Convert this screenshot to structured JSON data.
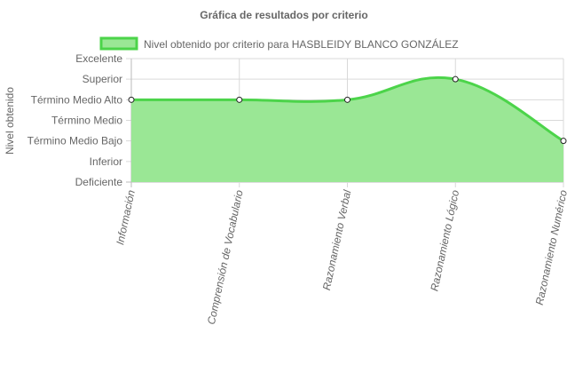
{
  "chart_data": {
    "type": "area",
    "title": "Gráfica de resultados por criterio",
    "ylabel": "Nivel obtenido",
    "xlabel": "",
    "y_levels": [
      "Deficiente",
      "Inferior",
      "Término Medio Bajo",
      "Término Medio",
      "Término Medio Alto",
      "Superior",
      "Excelente"
    ],
    "ylim": [
      0,
      6
    ],
    "categories": [
      "Información",
      "Comprensión de Vocabulario",
      "Razonamiento Verbal",
      "Razonamiento Lógico",
      "Razonamiento Numérico"
    ],
    "series": [
      {
        "name": "Nivel obtenido por criterio para HASBLEIDY BLANCO GONZÁLEZ",
        "values": [
          4,
          4,
          4,
          5,
          2
        ],
        "value_labels": [
          "Término Medio Alto",
          "Término Medio Alto",
          "Término Medio Alto",
          "Superior",
          "Término Medio Bajo"
        ]
      }
    ],
    "grid": true,
    "legend_position": "top",
    "colors": {
      "fill": "#9ae795",
      "line": "#4cd44a",
      "point_fill": "#ffffff",
      "point_stroke": "#222222",
      "grid": "#d9d9d9",
      "text": "#666666"
    }
  }
}
